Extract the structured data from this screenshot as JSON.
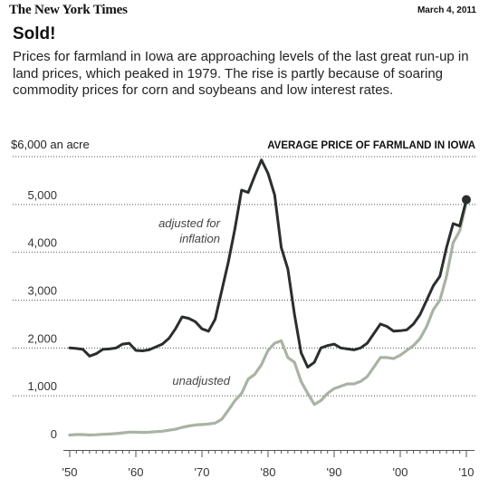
{
  "header": {
    "masthead": "The New York Times",
    "date": "March 4, 2011",
    "title": "Sold!",
    "subtitle": "Prices for farmland in Iowa are approaching levels of the last great run-up in land prices, which peaked in 1979. The rise is partly because of soaring commodity prices for corn and soybeans and low interest rates."
  },
  "chart_data": {
    "type": "line",
    "title": "AVERAGE PRICE OF FARMLAND IN IOWA",
    "ylabel_top": "$6,000 an acre",
    "ylim": [
      0,
      6000
    ],
    "xlim": [
      1950,
      2010
    ],
    "y_ticks": [
      0,
      1000,
      2000,
      3000,
      4000,
      5000
    ],
    "y_tick_labels": [
      "0",
      "1,000",
      "2,000",
      "3,000",
      "4,000",
      "5,000"
    ],
    "x_ticks": [
      1950,
      1960,
      1970,
      1980,
      1990,
      2000,
      2010
    ],
    "x_tick_labels": [
      "'50",
      "'60",
      "'70",
      "'80",
      "'90",
      "'00",
      "'10"
    ],
    "grid": "horizontal dotted",
    "annotations": [
      "adjusted for inflation",
      "unadjusted"
    ],
    "colors": {
      "adjusted": "#2b2f2c",
      "unadjusted": "#a9b3a3",
      "grid": "#555555"
    },
    "series": [
      {
        "key": "adjusted",
        "label_line1": "adjusted for",
        "label_line2": "inflation",
        "x": [
          1950,
          1951,
          1952,
          1953,
          1954,
          1955,
          1956,
          1957,
          1958,
          1959,
          1960,
          1961,
          1962,
          1963,
          1964,
          1965,
          1966,
          1967,
          1968,
          1969,
          1970,
          1971,
          1972,
          1973,
          1974,
          1975,
          1976,
          1977,
          1978,
          1979,
          1980,
          1981,
          1982,
          1983,
          1984,
          1985,
          1986,
          1987,
          1988,
          1989,
          1990,
          1991,
          1992,
          1993,
          1994,
          1995,
          1996,
          1997,
          1998,
          1999,
          2000,
          2001,
          2002,
          2003,
          2004,
          2005,
          2006,
          2007,
          2008,
          2009,
          2010
        ],
        "values": [
          2000,
          1990,
          1970,
          1830,
          1880,
          1970,
          1980,
          2000,
          2080,
          2100,
          1950,
          1940,
          1960,
          2020,
          2080,
          2200,
          2400,
          2650,
          2620,
          2550,
          2400,
          2350,
          2600,
          3200,
          3800,
          4500,
          5300,
          5250,
          5600,
          5930,
          5650,
          5200,
          4100,
          3650,
          2700,
          1900,
          1600,
          1700,
          2000,
          2050,
          2080,
          2000,
          1980,
          1960,
          2000,
          2100,
          2300,
          2500,
          2450,
          2350,
          2360,
          2380,
          2500,
          2700,
          3000,
          3300,
          3500,
          4100,
          4600,
          4550,
          5100
        ]
      },
      {
        "key": "unadjusted",
        "label": "unadjusted",
        "x": [
          1950,
          1951,
          1952,
          1953,
          1954,
          1955,
          1956,
          1957,
          1958,
          1959,
          1960,
          1961,
          1962,
          1963,
          1964,
          1965,
          1966,
          1967,
          1968,
          1969,
          1970,
          1971,
          1972,
          1973,
          1974,
          1975,
          1976,
          1977,
          1978,
          1979,
          1980,
          1981,
          1982,
          1983,
          1984,
          1985,
          1986,
          1987,
          1988,
          1989,
          1990,
          1991,
          1992,
          1993,
          1994,
          1995,
          1996,
          1997,
          1998,
          1999,
          2000,
          2001,
          2002,
          2003,
          2004,
          2005,
          2006,
          2007,
          2008,
          2009,
          2010
        ],
        "values": [
          180,
          190,
          190,
          180,
          185,
          195,
          200,
          210,
          225,
          240,
          240,
          235,
          240,
          250,
          260,
          280,
          300,
          340,
          370,
          390,
          400,
          410,
          430,
          510,
          700,
          900,
          1050,
          1350,
          1450,
          1650,
          1950,
          2100,
          2150,
          1800,
          1700,
          1300,
          1050,
          820,
          900,
          1050,
          1150,
          1200,
          1250,
          1250,
          1300,
          1400,
          1600,
          1800,
          1800,
          1780,
          1850,
          1950,
          2050,
          2200,
          2450,
          2800,
          3000,
          3500,
          4200,
          4450,
          5050
        ]
      }
    ],
    "endpoint": {
      "x": 2010,
      "y": 5100
    }
  }
}
